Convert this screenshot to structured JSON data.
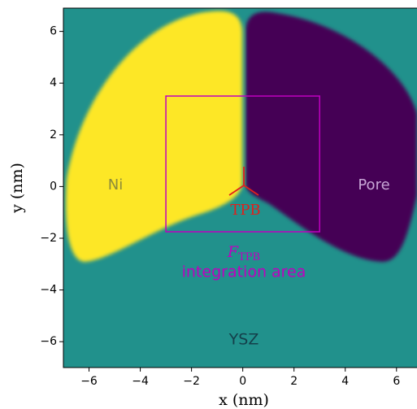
{
  "chart_data": {
    "type": "image",
    "xlabel": "x (nm)",
    "ylabel": "y (nm)",
    "xlim": [
      -7,
      6.8
    ],
    "ylim": [
      -7,
      6.9
    ],
    "xticks": [
      {
        "value": -6,
        "label": "−6"
      },
      {
        "value": -4,
        "label": "−4"
      },
      {
        "value": -2,
        "label": "−2"
      },
      0,
      2,
      4,
      6
    ],
    "yticks": [
      {
        "value": -6,
        "label": "−6"
      },
      {
        "value": -4,
        "label": "−4"
      },
      {
        "value": -2,
        "label": "−2"
      },
      0,
      2,
      4,
      6
    ],
    "background_color": "#21918c",
    "regions": [
      {
        "name": "Ni",
        "color": "#fde725"
      },
      {
        "name": "Pore",
        "color": "#440154"
      }
    ],
    "matrix_label": "YSZ",
    "tpb_label": "TPB",
    "integration_area": {
      "x": [
        -3,
        3
      ],
      "y": [
        -1.75,
        3.5
      ],
      "color": "#bf00bf",
      "symbol": "F",
      "subscript": "TPB",
      "caption": "integration area"
    }
  }
}
